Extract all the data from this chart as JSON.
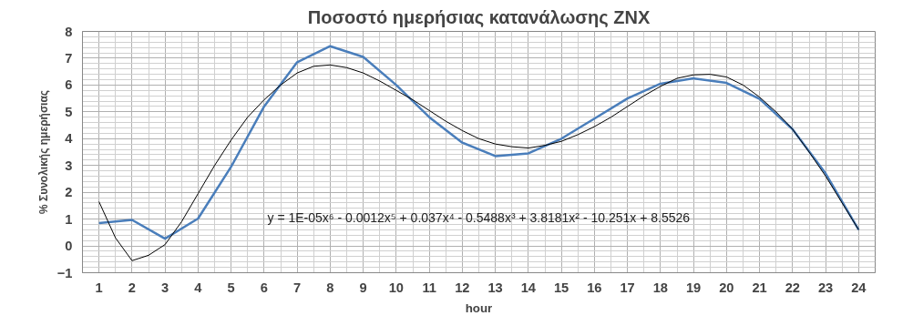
{
  "chart_data": {
    "type": "line",
    "title": "Ποσοστό ημερήσιας κατανάλωσης ZNX",
    "xlabel": "hour",
    "ylabel": "% Συνολικής ημερήσιας",
    "x": [
      1,
      2,
      3,
      4,
      5,
      6,
      7,
      8,
      9,
      10,
      11,
      12,
      13,
      14,
      15,
      16,
      17,
      18,
      19,
      20,
      21,
      22,
      23,
      24
    ],
    "xlim": [
      0.5,
      24.5
    ],
    "xticks": [
      1,
      2,
      3,
      4,
      5,
      6,
      7,
      8,
      9,
      10,
      11,
      12,
      13,
      14,
      15,
      16,
      17,
      18,
      19,
      20,
      21,
      22,
      23,
      24
    ],
    "ylim": [
      -1,
      8
    ],
    "yticks": [
      -1,
      0,
      1,
      2,
      3,
      4,
      5,
      6,
      7,
      8
    ],
    "grid": true,
    "marker": "none",
    "line_style": "solid",
    "series": [
      {
        "color": "#4a7ebb",
        "values": [
          0.85,
          0.97,
          0.27,
          1.02,
          2.95,
          5.2,
          6.85,
          7.45,
          7.05,
          6.0,
          4.8,
          3.85,
          3.35,
          3.45,
          4.0,
          4.75,
          5.5,
          6.05,
          6.25,
          6.08,
          5.48,
          4.35,
          2.7,
          0.6
        ]
      },
      {
        "color": "#000000",
        "x": [
          1,
          1.5,
          2,
          2.5,
          3,
          3.5,
          4,
          4.5,
          5,
          5.5,
          6,
          6.5,
          7,
          7.5,
          8,
          8.5,
          9,
          9.5,
          10,
          10.5,
          11,
          11.5,
          12,
          12.5,
          13,
          13.5,
          14,
          14.5,
          15,
          15.5,
          16,
          16.5,
          17,
          17.5,
          18,
          18.5,
          19,
          19.5,
          20,
          20.5,
          21,
          21.5,
          22,
          22.5,
          23,
          23.5,
          24
        ],
        "values": [
          1.65,
          0.3,
          -0.55,
          -0.35,
          0.05,
          0.9,
          1.95,
          3.0,
          3.95,
          4.8,
          5.45,
          6.0,
          6.45,
          6.7,
          6.75,
          6.65,
          6.45,
          6.15,
          5.8,
          5.45,
          5.05,
          4.65,
          4.3,
          4.0,
          3.8,
          3.7,
          3.65,
          3.75,
          3.9,
          4.15,
          4.45,
          4.8,
          5.2,
          5.6,
          5.95,
          6.25,
          6.38,
          6.4,
          6.3,
          6.0,
          5.55,
          5.0,
          4.35,
          3.5,
          2.6,
          1.6,
          0.6
        ]
      }
    ],
    "annotations": [
      "y = 1E-05x⁶ - 0.0012x⁵ + 0.037x⁴ - 0.5488x³ + 3.8181x² - 10.251x + 8.5526"
    ]
  }
}
